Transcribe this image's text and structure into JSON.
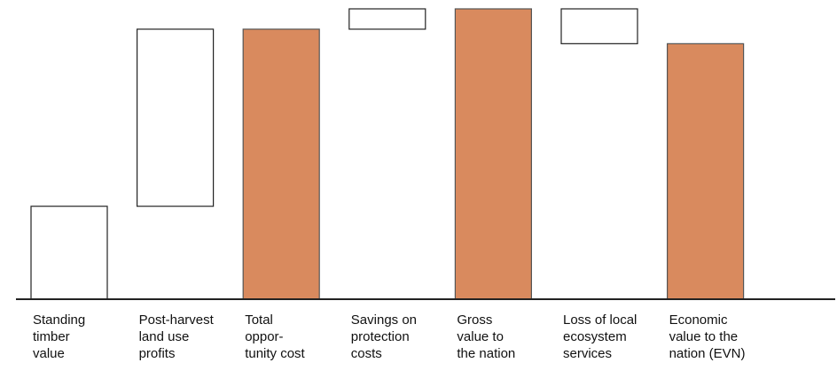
{
  "chart_data": {
    "type": "waterfall",
    "categories": [
      "Standing\ntimber\nvalue",
      "Post-harvest\nland use\nprofits",
      "Total\noppor-\ntunity cost",
      "Savings on\nprotection\ncosts",
      "Gross\nvalue to\nthe nation",
      "Loss of local\necosystem\nservices",
      "Economic\nvalue to the\nnation (EVN)"
    ],
    "values": [
      32,
      61,
      93,
      7,
      100,
      -12,
      88
    ],
    "measure": [
      "relative",
      "relative",
      "total",
      "relative",
      "total",
      "relative",
      "total"
    ],
    "ylim": [
      0,
      100
    ],
    "total_color": "#d98a5e",
    "step_color": "#ffffff"
  }
}
